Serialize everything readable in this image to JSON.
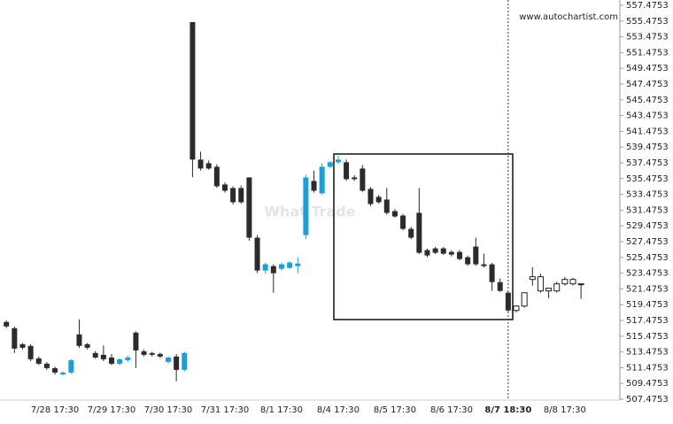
{
  "chart_data": {
    "type": "candlestick",
    "source": "www.autochartist.com",
    "watermark": "What Trade",
    "categories": [
      null,
      null,
      null,
      null,
      null,
      null,
      "7/28 17:30",
      null,
      null,
      null,
      null,
      null,
      null,
      "7/29 17:30",
      null,
      null,
      null,
      null,
      null,
      null,
      "7/30 17:30",
      null,
      null,
      null,
      null,
      null,
      null,
      "7/31 17:30",
      null,
      null,
      null,
      null,
      null,
      null,
      "8/1 17:30",
      null,
      null,
      null,
      null,
      null,
      null,
      "8/4 17:30",
      null,
      null,
      null,
      null,
      null,
      null,
      "8/5 17:30",
      null,
      null,
      null,
      null,
      null,
      null,
      "8/6 17:30",
      null,
      null,
      null,
      null,
      null,
      null,
      "8/7 18:30",
      null,
      null,
      null,
      null,
      null,
      null,
      "8/8 17:30",
      null,
      null
    ],
    "open": [
      517.28,
      516.49,
      514.46,
      514.24,
      512.66,
      511.98,
      511.42,
      510.63,
      510.86,
      515.7,
      514.46,
      513.34,
      513.11,
      512.77,
      511.98,
      512.43,
      515.93,
      513.56,
      513.34,
      513.22,
      512.21,
      512.89,
      511.2,
      555.34,
      537.89,
      537.43,
      536.98,
      534.73,
      534.28,
      534.28,
      535.63,
      527.98,
      523.81,
      524.37,
      524.03,
      524.15,
      524.37,
      528.31,
      535.18,
      533.61,
      536.98,
      537.55,
      537.55,
      535.63,
      536.76,
      534.17,
      533.16,
      532.82,
      531.35,
      530.79,
      529.1,
      531.13,
      526.4,
      526.62,
      526.62,
      526.17,
      526.17,
      525.5,
      526.85,
      524.6,
      524.6,
      522.34,
      520.99,
      518.74,
      519.3,
      522.68,
      523.02,
      521.22,
      521.22,
      522.12,
      522.68,
      522.12
    ],
    "high": [
      517.5,
      516.71,
      514.6,
      514.46,
      512.9,
      512.2,
      511.6,
      511.0,
      512.55,
      517.62,
      514.6,
      513.6,
      514.3,
      513.2,
      512.66,
      513.0,
      516.1,
      513.8,
      513.5,
      513.4,
      512.9,
      513.2,
      513.5,
      555.34,
      538.9,
      537.8,
      537.3,
      535.0,
      534.5,
      534.6,
      535.63,
      528.3,
      524.8,
      524.6,
      524.8,
      525.0,
      525.5,
      536.0,
      536.5,
      537.4,
      537.7,
      538.4,
      537.9,
      535.9,
      537.2,
      534.4,
      533.4,
      534.28,
      531.6,
      531.0,
      529.4,
      534.28,
      526.6,
      526.8,
      526.8,
      526.4,
      526.4,
      525.7,
      527.98,
      525.95,
      524.8,
      522.8,
      521.2,
      519.4,
      521.0,
      524.2,
      523.4,
      521.5,
      522.4,
      523.0,
      522.9,
      522.2
    ],
    "low": [
      516.49,
      513.34,
      513.8,
      512.3,
      511.8,
      511.2,
      510.6,
      510.5,
      510.7,
      514.0,
      513.8,
      512.6,
      512.3,
      511.8,
      511.8,
      512.2,
      511.42,
      512.9,
      512.9,
      512.7,
      512.0,
      509.73,
      511.0,
      535.63,
      536.5,
      536.6,
      534.3,
      533.7,
      532.2,
      532.3,
      527.6,
      523.5,
      523.4,
      520.99,
      523.8,
      524.0,
      523.47,
      527.8,
      533.7,
      533.4,
      536.8,
      537.3,
      535.2,
      535.2,
      533.8,
      532.0,
      532.3,
      530.9,
      530.5,
      528.9,
      527.8,
      525.9,
      525.5,
      525.9,
      525.8,
      525.6,
      525.1,
      524.4,
      524.4,
      524.2,
      521.22,
      521.1,
      518.6,
      518.5,
      519.1,
      521.9,
      521.0,
      520.3,
      521.0,
      521.9,
      521.9,
      520.21
    ],
    "close": [
      516.71,
      513.9,
      514.01,
      512.55,
      511.98,
      511.42,
      510.86,
      510.86,
      512.43,
      514.24,
      514.01,
      512.77,
      512.55,
      511.98,
      512.55,
      512.77,
      513.67,
      513.11,
      513.11,
      512.89,
      512.77,
      511.2,
      513.34,
      537.89,
      536.76,
      536.76,
      534.51,
      533.94,
      532.48,
      532.48,
      527.98,
      523.81,
      524.6,
      523.47,
      524.6,
      524.82,
      524.7,
      535.63,
      533.94,
      536.98,
      537.55,
      537.89,
      535.41,
      535.41,
      533.94,
      532.25,
      532.48,
      531.13,
      530.68,
      529.1,
      527.98,
      526.06,
      525.72,
      526.06,
      525.95,
      525.84,
      525.27,
      524.6,
      524.6,
      524.37,
      522.34,
      521.22,
      518.74,
      519.3,
      520.99,
      523.02,
      521.22,
      521.57,
      522.12,
      522.68,
      522.12,
      522.12
    ],
    "up_color": "#1a9fd9",
    "down_color": "#2b2b2e",
    "projection_color": "#ffffff",
    "highlight_index": 62,
    "ylim": [
      507.4753,
      557.4753
    ],
    "yticks": [
      507.4753,
      509.4753,
      511.4753,
      513.4753,
      515.4753,
      517.4753,
      519.4753,
      521.4753,
      523.4753,
      525.4753,
      527.4753,
      529.4753,
      531.4753,
      533.4753,
      535.4753,
      537.4753,
      539.4753,
      541.4753,
      543.4753,
      545.4753,
      547.4753,
      549.4753,
      551.4753,
      553.4753,
      555.4753,
      557.4753
    ]
  }
}
